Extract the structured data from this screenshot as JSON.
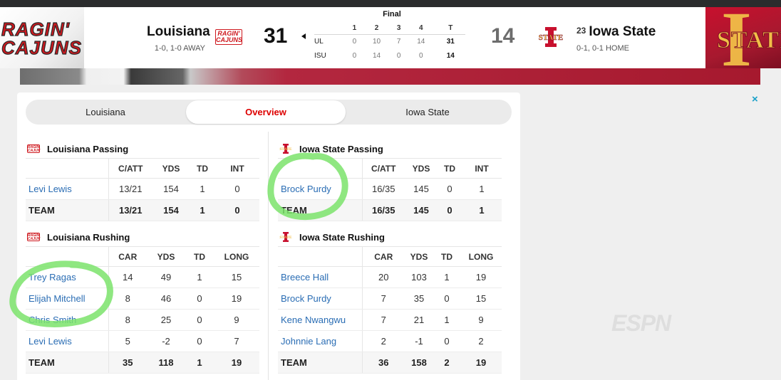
{
  "status": "Final",
  "away": {
    "name": "Louisiana",
    "record": "1-0, 1-0 AWAY",
    "score": "31",
    "abbr": "UL",
    "logo_text": "RAGIN' CAJUNS",
    "color": "#ce181e"
  },
  "home": {
    "name": "Iowa State",
    "rank": "23",
    "record": "0-1, 0-1 HOME",
    "score": "14",
    "abbr": "ISU",
    "logo_text": "STATE",
    "color": "#c8102e",
    "accent": "#f1be48"
  },
  "linescore": {
    "headers": [
      "1",
      "2",
      "3",
      "4",
      "T"
    ],
    "rows": [
      {
        "team": "UL",
        "q": [
          "0",
          "10",
          "7",
          "14"
        ],
        "total": "31"
      },
      {
        "team": "ISU",
        "q": [
          "0",
          "14",
          "0",
          "0"
        ],
        "total": "14"
      }
    ]
  },
  "tabs": [
    {
      "label": "Louisiana"
    },
    {
      "label": "Overview",
      "active": true
    },
    {
      "label": "Iowa State"
    }
  ],
  "ul_passing": {
    "title": "Louisiana Passing",
    "headers": [
      "C/ATT",
      "YDS",
      "TD",
      "INT"
    ],
    "rows": [
      {
        "name": "Levi Lewis",
        "stats": [
          "13/21",
          "154",
          "1",
          "0"
        ]
      },
      {
        "name": "TEAM",
        "stats": [
          "13/21",
          "154",
          "1",
          "0"
        ]
      }
    ]
  },
  "isu_passing": {
    "title": "Iowa State Passing",
    "headers": [
      "C/ATT",
      "YDS",
      "TD",
      "INT"
    ],
    "rows": [
      {
        "name": "Brock Purdy",
        "stats": [
          "16/35",
          "145",
          "0",
          "1"
        ]
      },
      {
        "name": "TEAM",
        "stats": [
          "16/35",
          "145",
          "0",
          "1"
        ]
      }
    ]
  },
  "ul_rushing": {
    "title": "Louisiana Rushing",
    "headers": [
      "CAR",
      "YDS",
      "TD",
      "LONG"
    ],
    "rows": [
      {
        "name": "Trey Ragas",
        "stats": [
          "14",
          "49",
          "1",
          "15"
        ]
      },
      {
        "name": "Elijah Mitchell",
        "stats": [
          "8",
          "46",
          "0",
          "19"
        ]
      },
      {
        "name": "Chris Smith",
        "stats": [
          "8",
          "25",
          "0",
          "9"
        ]
      },
      {
        "name": "Levi Lewis",
        "stats": [
          "5",
          "-2",
          "0",
          "7"
        ]
      },
      {
        "name": "TEAM",
        "stats": [
          "35",
          "118",
          "1",
          "19"
        ]
      }
    ]
  },
  "isu_rushing": {
    "title": "Iowa State Rushing",
    "headers": [
      "CAR",
      "YDS",
      "TD",
      "LONG"
    ],
    "rows": [
      {
        "name": "Breece Hall",
        "stats": [
          "20",
          "103",
          "1",
          "19"
        ]
      },
      {
        "name": "Brock Purdy",
        "stats": [
          "7",
          "35",
          "0",
          "15"
        ]
      },
      {
        "name": "Kene Nwangwu",
        "stats": [
          "7",
          "21",
          "1",
          "9"
        ]
      },
      {
        "name": "Johnnie Lang",
        "stats": [
          "2",
          "-1",
          "0",
          "2"
        ]
      },
      {
        "name": "TEAM",
        "stats": [
          "36",
          "158",
          "2",
          "19"
        ]
      }
    ]
  },
  "watermark": "ESPN",
  "close_symbol": "×",
  "highlight_color": "#7be36b"
}
